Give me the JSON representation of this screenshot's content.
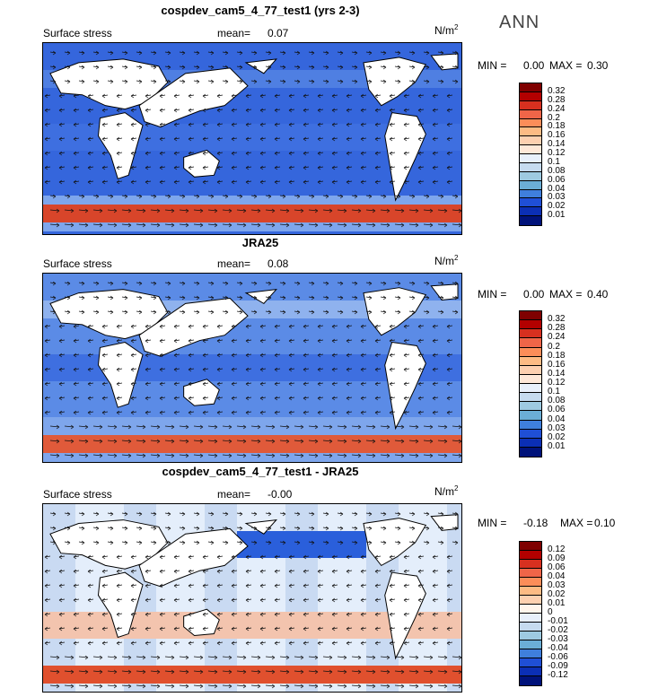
{
  "season_label": "ANN",
  "panels": [
    {
      "title": "cospdev_cam5_4_77_test1 (yrs 2-3)",
      "field_label": "Surface stress",
      "mean_label": "mean=",
      "mean_value": "0.07",
      "units": "N/m",
      "units_exp": "2",
      "min_label": "MIN =",
      "min_value": "0.00",
      "max_label": "MAX =",
      "max_value": "0.30",
      "map_kind": "model",
      "colorbar": {
        "colors": [
          "#7f0000",
          "#b30000",
          "#d7301f",
          "#ef6548",
          "#fc8d59",
          "#fdbb84",
          "#fdd0b0",
          "#fee8d8",
          "#e8f0fb",
          "#c6dbef",
          "#9ecae1",
          "#6baed6",
          "#3f7fdc",
          "#1f4fd6",
          "#0b2fb5",
          "#00127a"
        ],
        "labels": [
          "0.32",
          "0.28",
          "0.24",
          "0.2",
          "0.18",
          "0.16",
          "0.14",
          "0.12",
          "0.1",
          "0.08",
          "0.06",
          "0.04",
          "0.03",
          "0.02",
          "0.01"
        ]
      }
    },
    {
      "title": "JRA25",
      "field_label": "Surface stress",
      "mean_label": "mean=",
      "mean_value": "0.08",
      "units": "N/m",
      "units_exp": "2",
      "min_label": "MIN =",
      "min_value": "0.00",
      "max_label": "MAX =",
      "max_value": "0.40",
      "map_kind": "obs",
      "colorbar": {
        "colors": [
          "#7f0000",
          "#b30000",
          "#d7301f",
          "#ef6548",
          "#fc8d59",
          "#fdbb84",
          "#fdd0b0",
          "#fee8d8",
          "#e8f0fb",
          "#c6dbef",
          "#9ecae1",
          "#6baed6",
          "#3f7fdc",
          "#1f4fd6",
          "#0b2fb5",
          "#00127a"
        ],
        "labels": [
          "0.32",
          "0.28",
          "0.24",
          "0.2",
          "0.18",
          "0.16",
          "0.14",
          "0.12",
          "0.1",
          "0.08",
          "0.06",
          "0.04",
          "0.03",
          "0.02",
          "0.01"
        ]
      }
    },
    {
      "title": "cospdev_cam5_4_77_test1 - JRA25",
      "field_label": "Surface stress",
      "mean_label": "mean=",
      "mean_value": "-0.00",
      "units": "N/m",
      "units_exp": "2",
      "min_label": "MIN =",
      "min_value": "-0.18",
      "max_label": "MAX =",
      "max_value": "0.10",
      "map_kind": "diff",
      "colorbar": {
        "colors": [
          "#7f0000",
          "#b30000",
          "#d7301f",
          "#ef6548",
          "#fc8d59",
          "#fdbb84",
          "#fdd0b0",
          "#fff5ec",
          "#e8f0fb",
          "#c6dbef",
          "#9ecae1",
          "#6baed6",
          "#3f7fdc",
          "#1f4fd6",
          "#0b2fb5",
          "#00127a"
        ],
        "labels": [
          "0.12",
          "0.09",
          "0.06",
          "0.04",
          "0.03",
          "0.02",
          "0.01",
          "0",
          "-0.01",
          "-0.02",
          "-0.03",
          "-0.04",
          "-0.06",
          "-0.09",
          "-0.12"
        ]
      }
    }
  ]
}
